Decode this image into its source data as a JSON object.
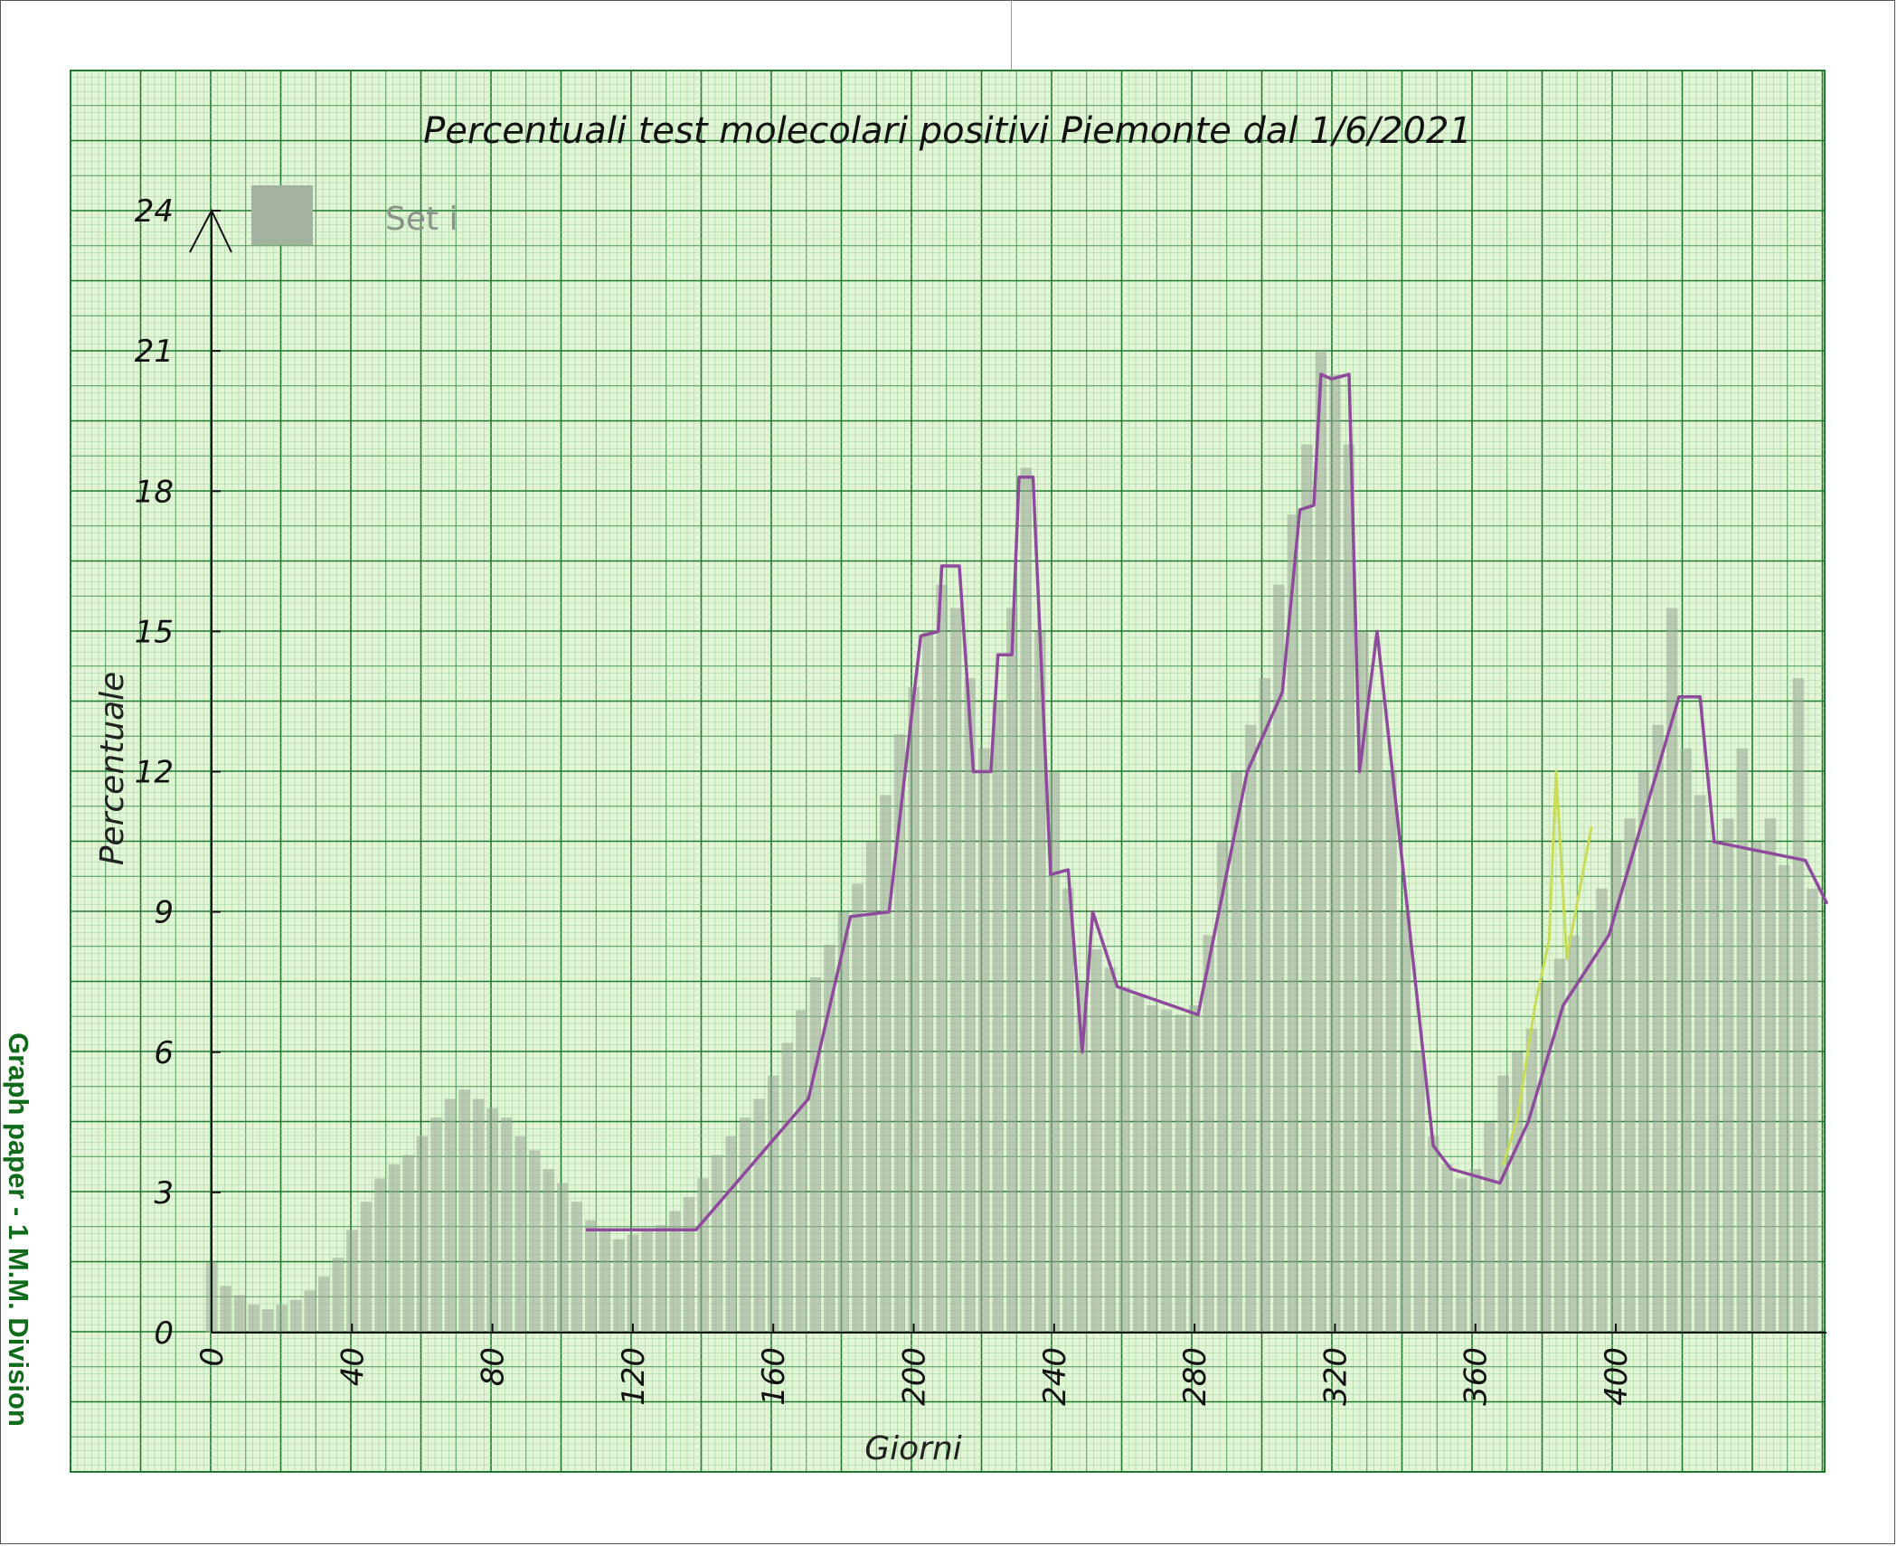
{
  "paper": {
    "side_label": "Graph paper - 1 M.M. Division",
    "background": "#e2f5d6",
    "grid_major": "#1f7a2e",
    "grid_mid": "#4a9a52",
    "grid_minor": "#9fd49a"
  },
  "chart_data": {
    "type": "line",
    "title": "Percentuali test molecolari positivi Piemonte dal 1/6/2021",
    "xlabel": "Giorni",
    "ylabel": "Percentuale",
    "xlim": [
      0,
      460
    ],
    "ylim": [
      0,
      24
    ],
    "xticks": [
      0,
      40,
      80,
      120,
      160,
      200,
      240,
      280,
      320,
      360,
      400
    ],
    "yticks": [
      0,
      3,
      6,
      9,
      12,
      15,
      18,
      21,
      24
    ],
    "grid": true,
    "legend": {
      "position": "top-left",
      "entries": [
        {
          "label": "Set i",
          "color": "#a3b3a0"
        }
      ]
    },
    "series": [
      {
        "name": "Set i",
        "style": "bars",
        "color": "#9aa898",
        "points": [
          [
            0,
            1.5
          ],
          [
            4,
            1.0
          ],
          [
            8,
            0.8
          ],
          [
            12,
            0.6
          ],
          [
            16,
            0.5
          ],
          [
            20,
            0.6
          ],
          [
            24,
            0.7
          ],
          [
            28,
            0.9
          ],
          [
            32,
            1.2
          ],
          [
            36,
            1.6
          ],
          [
            40,
            2.2
          ],
          [
            44,
            2.8
          ],
          [
            48,
            3.3
          ],
          [
            52,
            3.6
          ],
          [
            56,
            3.8
          ],
          [
            60,
            4.2
          ],
          [
            64,
            4.6
          ],
          [
            68,
            5.0
          ],
          [
            72,
            5.2
          ],
          [
            76,
            5.0
          ],
          [
            80,
            4.8
          ],
          [
            84,
            4.6
          ],
          [
            88,
            4.2
          ],
          [
            92,
            3.9
          ],
          [
            96,
            3.5
          ],
          [
            100,
            3.2
          ],
          [
            104,
            2.8
          ],
          [
            108,
            2.4
          ],
          [
            112,
            2.2
          ],
          [
            116,
            2.0
          ],
          [
            120,
            2.1
          ],
          [
            124,
            2.2
          ],
          [
            128,
            2.3
          ],
          [
            132,
            2.6
          ],
          [
            136,
            2.9
          ],
          [
            140,
            3.3
          ],
          [
            144,
            3.8
          ],
          [
            148,
            4.2
          ],
          [
            152,
            4.6
          ],
          [
            156,
            5.0
          ],
          [
            160,
            5.5
          ],
          [
            164,
            6.2
          ],
          [
            168,
            6.9
          ],
          [
            172,
            7.6
          ],
          [
            176,
            8.3
          ],
          [
            180,
            9.0
          ],
          [
            184,
            9.6
          ],
          [
            188,
            10.5
          ],
          [
            192,
            11.5
          ],
          [
            196,
            12.8
          ],
          [
            200,
            13.8
          ],
          [
            204,
            15.0
          ],
          [
            208,
            16.0
          ],
          [
            212,
            15.5
          ],
          [
            216,
            14.0
          ],
          [
            220,
            12.5
          ],
          [
            224,
            13.5
          ],
          [
            228,
            15.5
          ],
          [
            232,
            18.5
          ],
          [
            236,
            15.0
          ],
          [
            240,
            12.0
          ],
          [
            244,
            9.5
          ],
          [
            248,
            7.5
          ],
          [
            252,
            8.2
          ],
          [
            256,
            7.8
          ],
          [
            260,
            7.4
          ],
          [
            264,
            7.2
          ],
          [
            268,
            7.0
          ],
          [
            272,
            6.9
          ],
          [
            276,
            6.8
          ],
          [
            280,
            7.0
          ],
          [
            284,
            8.5
          ],
          [
            288,
            10.5
          ],
          [
            292,
            12.0
          ],
          [
            296,
            13.0
          ],
          [
            300,
            14.0
          ],
          [
            304,
            16.0
          ],
          [
            308,
            17.5
          ],
          [
            312,
            19.0
          ],
          [
            316,
            21.0
          ],
          [
            320,
            20.5
          ],
          [
            324,
            19.0
          ],
          [
            328,
            15.0
          ],
          [
            332,
            13.5
          ],
          [
            336,
            12.0
          ],
          [
            340,
            9.0
          ],
          [
            344,
            6.0
          ],
          [
            348,
            4.2
          ],
          [
            352,
            3.6
          ],
          [
            356,
            3.3
          ],
          [
            360,
            3.5
          ],
          [
            364,
            4.5
          ],
          [
            368,
            5.5
          ],
          [
            372,
            6.0
          ],
          [
            376,
            6.5
          ],
          [
            380,
            7.5
          ],
          [
            384,
            8.0
          ],
          [
            388,
            8.5
          ],
          [
            392,
            9.0
          ],
          [
            396,
            9.5
          ],
          [
            400,
            10.5
          ],
          [
            404,
            11.0
          ],
          [
            408,
            12.0
          ],
          [
            412,
            13.0
          ],
          [
            416,
            15.5
          ],
          [
            420,
            12.5
          ],
          [
            424,
            11.5
          ],
          [
            428,
            10.5
          ],
          [
            432,
            11.0
          ],
          [
            436,
            12.5
          ],
          [
            440,
            10.5
          ],
          [
            444,
            11.0
          ],
          [
            448,
            10.0
          ],
          [
            452,
            14.0
          ],
          [
            456,
            9.5
          ]
        ]
      },
      {
        "name": "",
        "style": "line",
        "color": "#8e4b9c",
        "points": [
          [
            107,
            2.2
          ],
          [
            138,
            2.2
          ],
          [
            170,
            5.0
          ],
          [
            182,
            8.9
          ],
          [
            193,
            9.0
          ],
          [
            202,
            14.9
          ],
          [
            207,
            15.0
          ],
          [
            208,
            16.4
          ],
          [
            213,
            16.4
          ],
          [
            217,
            12.0
          ],
          [
            222,
            12.0
          ],
          [
            224,
            14.5
          ],
          [
            228,
            14.5
          ],
          [
            230,
            18.3
          ],
          [
            234,
            18.3
          ],
          [
            239,
            9.8
          ],
          [
            244,
            9.9
          ],
          [
            248,
            6.0
          ],
          [
            251,
            9.0
          ],
          [
            258,
            7.4
          ],
          [
            281,
            6.8
          ],
          [
            295,
            12.0
          ],
          [
            305,
            13.7
          ],
          [
            310,
            17.6
          ],
          [
            314,
            17.7
          ],
          [
            316,
            20.5
          ],
          [
            319,
            20.4
          ],
          [
            324,
            20.5
          ],
          [
            327,
            12.0
          ],
          [
            332,
            15.0
          ],
          [
            348,
            4.0
          ],
          [
            353,
            3.5
          ],
          [
            367,
            3.2
          ],
          [
            375,
            4.5
          ],
          [
            385,
            7.0
          ],
          [
            398,
            8.5
          ],
          [
            418,
            13.6
          ],
          [
            424,
            13.6
          ],
          [
            428,
            10.5
          ],
          [
            454,
            10.1
          ],
          [
            460,
            9.2
          ]
        ]
      },
      {
        "name": "",
        "style": "line",
        "color": "#c8dc58",
        "points": [
          [
            368,
            3.6
          ],
          [
            372,
            4.6
          ],
          [
            377,
            7.0
          ],
          [
            381,
            8.4
          ],
          [
            383,
            12.0
          ],
          [
            386,
            8.0
          ],
          [
            393,
            10.8
          ]
        ]
      }
    ]
  }
}
